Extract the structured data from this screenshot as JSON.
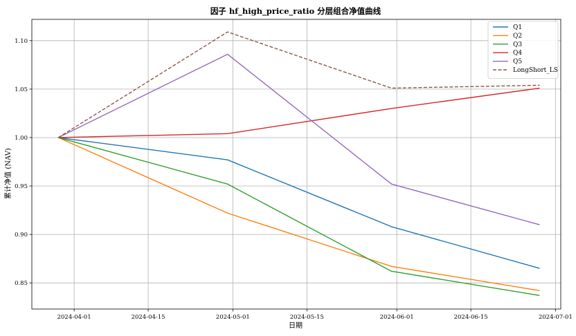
{
  "chart_data": {
    "type": "line",
    "title": "因子 hf_high_price_ratio 分层组合净值曲线",
    "xlabel": "日期",
    "ylabel": "累计净值 (NAV)",
    "x": [
      "2024-03-29",
      "2024-04-30",
      "2024-05-31",
      "2024-06-28"
    ],
    "x_ticks": [
      "2024-04-01",
      "2024-04-15",
      "2024-05-01",
      "2024-05-15",
      "2024-06-01",
      "2024-06-15",
      "2024-07-01"
    ],
    "xlim": [
      "2024-03-24",
      "2024-07-02"
    ],
    "y_ticks": [
      0.85,
      0.9,
      0.95,
      1.0,
      1.05,
      1.1
    ],
    "y_tick_labels": [
      "0.85",
      "0.90",
      "0.95",
      "1.00",
      "1.05",
      "1.10"
    ],
    "ylim": [
      0.823,
      1.122
    ],
    "grid": true,
    "legend_position": "top-right",
    "series": [
      {
        "name": "Q1",
        "color": "#1f77b4",
        "dash": "solid",
        "values": [
          1.0,
          0.977,
          0.908,
          0.865
        ]
      },
      {
        "name": "Q2",
        "color": "#ff7f0e",
        "dash": "solid",
        "values": [
          1.0,
          0.922,
          0.867,
          0.842
        ]
      },
      {
        "name": "Q3",
        "color": "#2ca02c",
        "dash": "solid",
        "values": [
          1.0,
          0.952,
          0.862,
          0.837
        ]
      },
      {
        "name": "Q4",
        "color": "#d62728",
        "dash": "solid",
        "values": [
          1.0,
          1.004,
          1.03,
          1.051
        ]
      },
      {
        "name": "Q5",
        "color": "#9467bd",
        "dash": "solid",
        "values": [
          1.0,
          1.086,
          0.952,
          0.91
        ]
      },
      {
        "name": "LongShort_LS",
        "color": "#8c564b",
        "dash": "dashed",
        "values": [
          1.0,
          1.109,
          1.051,
          1.054
        ]
      }
    ]
  }
}
